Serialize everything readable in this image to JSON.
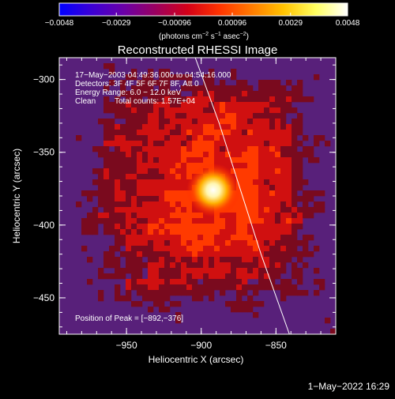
{
  "chart_data": {
    "type": "heatmap",
    "title": "Reconstructed RHESSI Image",
    "xlabel": "Heliocentric X (arcsec)",
    "ylabel": "Heliocentric Y (arcsec)",
    "xlim": [
      -995,
      -810
    ],
    "ylim": [
      -475,
      -285
    ],
    "x_ticks": [
      {
        "value": -950,
        "label": "−950"
      },
      {
        "value": -900,
        "label": "−900"
      },
      {
        "value": -850,
        "label": "−850"
      }
    ],
    "y_ticks": [
      {
        "value": -300,
        "label": "−300"
      },
      {
        "value": -350,
        "label": "−350"
      },
      {
        "value": -400,
        "label": "−400"
      },
      {
        "value": -450,
        "label": "−450"
      }
    ],
    "colorbar": {
      "min": -0.0048,
      "max": 0.0048,
      "ticks": [
        {
          "value": -0.0048,
          "label": "−0.0048"
        },
        {
          "value": -0.0029,
          "label": "−0.0029"
        },
        {
          "value": -0.00096,
          "label": "−0.00096"
        },
        {
          "value": 0.00096,
          "label": "0.00096"
        },
        {
          "value": 0.0029,
          "label": "0.0029"
        },
        {
          "value": 0.0048,
          "label": "0.0048"
        }
      ],
      "unit_main": "(photons cm",
      "unit_exp1": "−2",
      "unit_mid": " s",
      "unit_exp2": "−1",
      "unit_mid2": " asec",
      "unit_exp3": "−2",
      "unit_end": ")",
      "colors": [
        "#0000ff",
        "#3b00d6",
        "#6a00a8",
        "#9a0060",
        "#d40018",
        "#ff3300",
        "#ff7a00",
        "#ffc200",
        "#ffff60",
        "#ffffff"
      ]
    },
    "annotations": {
      "time_range": "17−May−2003 04:49:36.000 to 04:54:16.000",
      "detectors": "Detectors: 3F 4F 5F 6F 7F 8F, Att 0",
      "energy_range": "Energy Range: 6.0 − 12.0 keV",
      "algorithm": "Clean",
      "total_counts": "Total counts: 1.57E+04",
      "peak_position": "Position of Peak = [−892,−376]"
    },
    "peak": {
      "x": -892,
      "y": -376
    },
    "limb_curve": [
      [
        -904,
        -285
      ],
      [
        -888,
        -330
      ],
      [
        -874,
        -375
      ],
      [
        -860,
        -420
      ],
      [
        -841,
        -475
      ]
    ],
    "image_colors": {
      "background": "#58207a",
      "low": "#7a0a1e",
      "mid": "#d01010",
      "high": "#ff3a00",
      "peak": "#fff6c8"
    }
  },
  "footer": {
    "date": "1−May−2022 16:29"
  }
}
